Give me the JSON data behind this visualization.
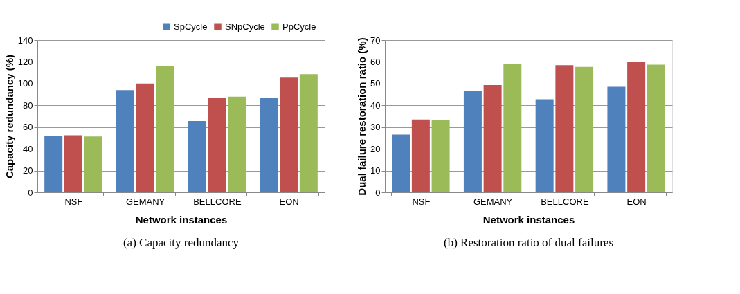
{
  "chart_data": [
    {
      "type": "bar",
      "title": "(a) Capacity redundancy",
      "xlabel": "Network instances",
      "ylabel": "Capacity redundancy (%)",
      "categories": [
        "NSF",
        "GEMANY",
        "BELLCORE",
        "EON"
      ],
      "ylim": [
        0,
        140
      ],
      "yticks": [
        0,
        20,
        40,
        60,
        80,
        100,
        120,
        140
      ],
      "grid": "y",
      "legend": "top right",
      "series": [
        {
          "name": "SpCycle",
          "color": "#4f81bd",
          "values": [
            51.8,
            94.1,
            65.5,
            86.9
          ]
        },
        {
          "name": "SNpCycle",
          "color": "#c0504d",
          "values": [
            52.5,
            100,
            86.9,
            105.4
          ]
        },
        {
          "name": "PpCycle",
          "color": "#9bbb59",
          "values": [
            51.4,
            116.4,
            87.9,
            108.7
          ]
        }
      ]
    },
    {
      "type": "bar",
      "title": "(b) Restoration ratio of dual failures",
      "xlabel": "Network instances",
      "ylabel": "Dual failure restoration ratio (%)",
      "categories": [
        "NSF",
        "GEMANY",
        "BELLCORE",
        "EON"
      ],
      "ylim": [
        0,
        70
      ],
      "yticks": [
        0,
        10,
        20,
        30,
        40,
        50,
        60,
        70
      ],
      "grid": "y",
      "legend": "top right",
      "series": [
        {
          "name": "SpCycle",
          "color": "#4f81bd",
          "values": [
            26.6,
            46.8,
            42.8,
            48.5
          ]
        },
        {
          "name": "SNpCycle",
          "color": "#c0504d",
          "values": [
            33.5,
            49.3,
            58.5,
            59.9
          ]
        },
        {
          "name": "PpCycle",
          "color": "#9bbb59",
          "values": [
            33.1,
            58.9,
            57.7,
            58.7
          ]
        }
      ]
    }
  ]
}
